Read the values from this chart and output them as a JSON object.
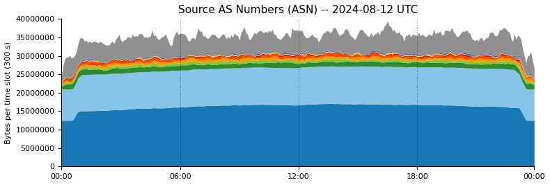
{
  "title": "Source AS Numbers (ASN) -- 2024-08-12 UTC",
  "ylabel": "Bytes per time slot (300 s)",
  "ylim": [
    0,
    40000000
  ],
  "yticks": [
    0,
    5000000,
    10000000,
    15000000,
    20000000,
    25000000,
    30000000,
    35000000,
    40000000
  ],
  "xtick_labels": [
    "00:00",
    "06:00",
    "12:00",
    "18:00",
    "00:00"
  ],
  "n_points": 288,
  "colors_list": [
    "#1878b4",
    "#87c5e8",
    "#2d8a2d",
    "#7ec840",
    "#ff9900",
    "#ff4500",
    "#cc2200",
    "#ffd700",
    "#3060d0",
    "#909090"
  ]
}
